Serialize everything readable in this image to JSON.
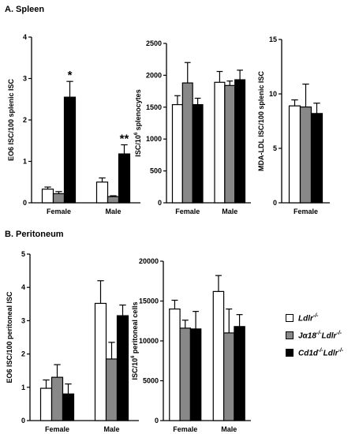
{
  "panel_a_title": "A.  Spleen",
  "panel_b_title": "B.  Peritoneum",
  "colors": {
    "Ldlr": "#ffffff",
    "Ja18": "#888888",
    "Cd1d": "#000000"
  },
  "legend": [
    {
      "key": "Ldlr",
      "label_parts": [
        [
          "Ldlr",
          "-/-"
        ]
      ]
    },
    {
      "key": "Ja18",
      "label_parts": [
        [
          "Jα18",
          "-/-"
        ],
        [
          "Ldlr",
          "-/-"
        ]
      ]
    },
    {
      "key": "Cd1d",
      "label_parts": [
        [
          "Cd1d",
          "-/-"
        ],
        [
          "Ldlr",
          "-/-"
        ]
      ]
    }
  ],
  "chart_data": [
    {
      "type": "bar",
      "panel": "A",
      "ylabel": "EO6 ISC/100 splenic ISC",
      "ylim": [
        0,
        4
      ],
      "yticks": [
        0,
        1,
        2,
        3,
        4
      ],
      "categories": [
        "Female",
        "Male"
      ],
      "series": [
        {
          "key": "Ldlr",
          "values": [
            0.33,
            0.5
          ],
          "errors": [
            0.05,
            0.1
          ]
        },
        {
          "key": "Ja18",
          "values": [
            0.22,
            0.15
          ],
          "errors": [
            0.05,
            0.02
          ]
        },
        {
          "key": "Cd1d",
          "values": [
            2.55,
            1.18
          ],
          "errors": [
            0.38,
            0.22
          ]
        }
      ],
      "annotations": [
        {
          "text": "*",
          "category": 0,
          "series": 2
        },
        {
          "text": "**",
          "category": 1,
          "series": 2
        }
      ]
    },
    {
      "type": "bar",
      "panel": "A",
      "ylabel": "ISC/10^6 splenocytes",
      "ylabel_parts": [
        "ISC/10",
        "6",
        " splenocytes"
      ],
      "ylim": [
        0,
        2500
      ],
      "yticks": [
        0,
        500,
        1000,
        1500,
        2000,
        2500
      ],
      "categories": [
        "Female",
        "Male"
      ],
      "series": [
        {
          "key": "Ldlr",
          "values": [
            1540,
            1890
          ],
          "errors": [
            140,
            170
          ]
        },
        {
          "key": "Ja18",
          "values": [
            1880,
            1840
          ],
          "errors": [
            320,
            70
          ]
        },
        {
          "key": "Cd1d",
          "values": [
            1540,
            1930
          ],
          "errors": [
            100,
            150
          ]
        }
      ]
    },
    {
      "type": "bar",
      "panel": "A",
      "ylabel": "MDA-LDL ISC/100 splenic ISC",
      "ylim": [
        0,
        15
      ],
      "yticks": [
        0,
        5,
        10,
        15
      ],
      "categories": [
        "Female"
      ],
      "series": [
        {
          "key": "Ldlr",
          "values": [
            8.9
          ],
          "errors": [
            0.55
          ]
        },
        {
          "key": "Ja18",
          "values": [
            8.8
          ],
          "errors": [
            2.1
          ]
        },
        {
          "key": "Cd1d",
          "values": [
            8.2
          ],
          "errors": [
            0.95
          ]
        }
      ]
    },
    {
      "type": "bar",
      "panel": "B",
      "ylabel": "EO6 ISC/100 peritoneal ISC",
      "ylim": [
        0,
        5
      ],
      "yticks": [
        0,
        1,
        2,
        3,
        4,
        5
      ],
      "categories": [
        "Female",
        "Male"
      ],
      "series": [
        {
          "key": "Ldlr",
          "values": [
            0.97,
            3.52
          ],
          "errors": [
            0.25,
            0.68
          ]
        },
        {
          "key": "Ja18",
          "values": [
            1.3,
            1.85
          ],
          "errors": [
            0.38,
            0.5
          ]
        },
        {
          "key": "Cd1d",
          "values": [
            0.8,
            3.15
          ],
          "errors": [
            0.3,
            0.32
          ]
        }
      ]
    },
    {
      "type": "bar",
      "panel": "B",
      "ylabel": "ISC/10^6 peritoneal cells",
      "ylabel_parts": [
        "ISC/10",
        "6",
        " peritoneal cells"
      ],
      "ylim": [
        0,
        20000
      ],
      "yticks": [
        0,
        5000,
        10000,
        15000,
        20000
      ],
      "categories": [
        "Female",
        "Male"
      ],
      "series": [
        {
          "key": "Ldlr",
          "values": [
            14000,
            16200
          ],
          "errors": [
            1100,
            2000
          ]
        },
        {
          "key": "Ja18",
          "values": [
            11600,
            11000
          ],
          "errors": [
            1000,
            3000
          ]
        },
        {
          "key": "Cd1d",
          "values": [
            11500,
            11800
          ],
          "errors": [
            2200,
            1500
          ]
        }
      ]
    }
  ]
}
